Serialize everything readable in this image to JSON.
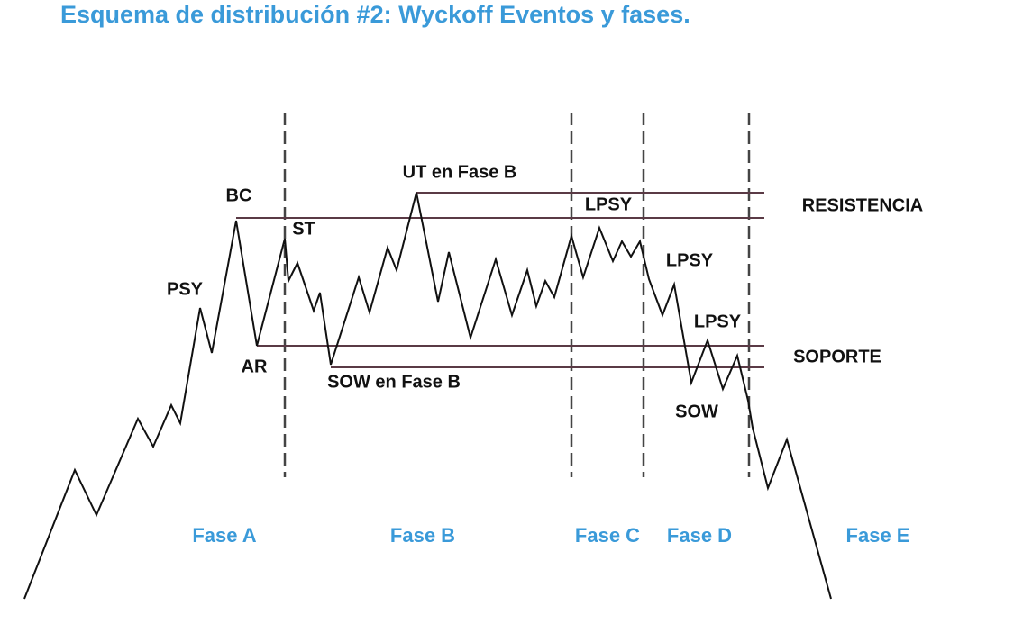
{
  "title": "Esquema de distribución #2: Wyckoff Eventos y fases.",
  "events": [
    "BC",
    "ST",
    "UT en Fase B",
    "LPSY",
    "PSY",
    "AR",
    "SOW en Fase B",
    "LPSY",
    "LPSY",
    "SOW"
  ],
  "levels": [
    "RESISTENCIA",
    "SOPORTE"
  ],
  "phases": [
    "Fase A",
    "Fase B",
    "Fase C",
    "Fase D",
    "Fase E"
  ]
}
